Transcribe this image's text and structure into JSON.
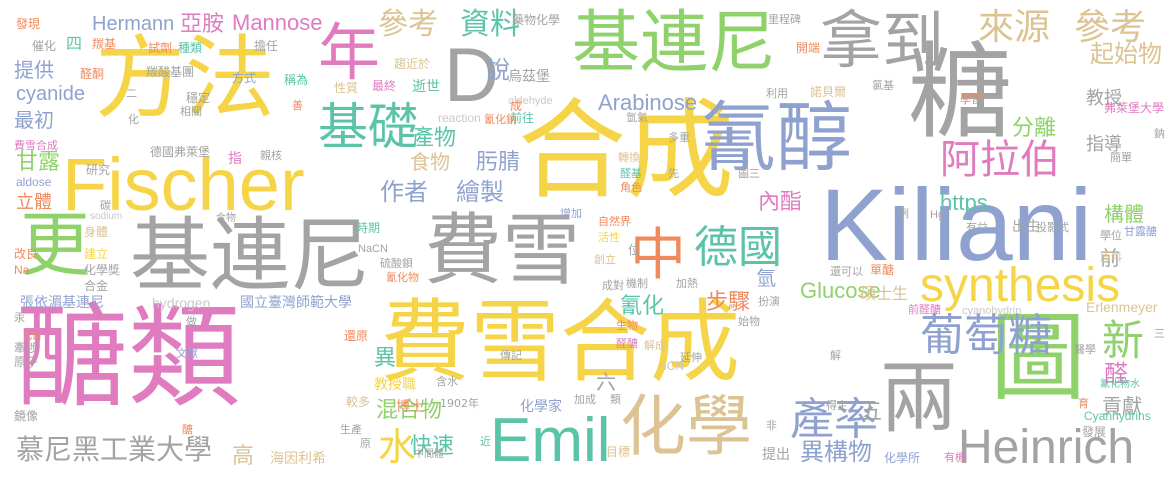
{
  "colors": {
    "yellow": "#f5d547",
    "pink": "#e07bc0",
    "gray": "#a3a3a3",
    "blue": "#8fa2cf",
    "green": "#8fd16a",
    "teal": "#5bc4a8",
    "orange": "#f08a5d",
    "tan": "#dcc393",
    "lightgray": "#c9c9c9"
  },
  "words": [
    {
      "text": "合成",
      "color": "yellow"
    },
    {
      "text": "醣類",
      "color": "pink"
    },
    {
      "text": "費雪合成",
      "color": "yellow"
    },
    {
      "text": "Kiliani",
      "color": "blue"
    },
    {
      "text": "方法",
      "color": "yellow"
    },
    {
      "text": "Fischer",
      "color": "yellow"
    },
    {
      "text": "基連尼",
      "color": "gray"
    },
    {
      "text": "費雪",
      "color": "gray"
    },
    {
      "text": "氰醇",
      "color": "blue"
    },
    {
      "text": "基連尼",
      "color": "green"
    },
    {
      "text": "拿到",
      "color": "gray"
    },
    {
      "text": "糖",
      "color": "gray"
    },
    {
      "text": "圖",
      "color": "green"
    },
    {
      "text": "D",
      "color": "gray"
    },
    {
      "text": "Emil",
      "color": "teal"
    },
    {
      "text": "化學",
      "color": "tan"
    },
    {
      "text": "兩",
      "color": "gray"
    },
    {
      "text": "Heinrich",
      "color": "gray"
    },
    {
      "text": "synthesis",
      "color": "yellow"
    },
    {
      "text": "葡萄糖",
      "color": "blue"
    },
    {
      "text": "中",
      "color": "orange"
    },
    {
      "text": "德國",
      "color": "teal"
    },
    {
      "text": "更",
      "color": "green"
    },
    {
      "text": "年",
      "color": "pink"
    },
    {
      "text": "基礎",
      "color": "teal"
    },
    {
      "text": "阿拉伯",
      "color": "pink"
    },
    {
      "text": "來源",
      "color": "tan"
    },
    {
      "text": "參考",
      "color": "tan"
    },
    {
      "text": "產率",
      "color": "blue"
    },
    {
      "text": "參考",
      "color": "tan"
    },
    {
      "text": "資料",
      "color": "teal"
    },
    {
      "text": "新",
      "color": "green"
    },
    {
      "text": "慕尼黑工業大學",
      "color": "gray"
    },
    {
      "text": "水",
      "color": "yellow"
    },
    {
      "text": "作者",
      "color": "blue"
    },
    {
      "text": "繪製",
      "color": "blue"
    },
    {
      "text": "異構物",
      "color": "blue"
    },
    {
      "text": "混合物",
      "color": "green"
    },
    {
      "text": "快速",
      "color": "teal"
    },
    {
      "text": "Arabinose",
      "color": "blue"
    },
    {
      "text": "Glucose",
      "color": "green"
    },
    {
      "text": "Mannose",
      "color": "pink"
    },
    {
      "text": "Hermann",
      "color": "blue"
    },
    {
      "text": "亞胺",
      "color": "pink"
    },
    {
      "text": "https",
      "color": "teal"
    },
    {
      "text": "步驟",
      "color": "orange"
    },
    {
      "text": "氰化",
      "color": "teal"
    },
    {
      "text": "說",
      "color": "blue"
    },
    {
      "text": "產物",
      "color": "teal"
    },
    {
      "text": "肟腈",
      "color": "blue"
    },
    {
      "text": "食物",
      "color": "tan"
    },
    {
      "text": "內酯",
      "color": "pink"
    },
    {
      "text": "cyanide",
      "color": "blue"
    },
    {
      "text": "提供",
      "color": "blue"
    },
    {
      "text": "最初",
      "color": "blue"
    },
    {
      "text": "甘露",
      "color": "green"
    },
    {
      "text": "立體",
      "color": "orange"
    },
    {
      "text": "教授",
      "color": "gray"
    },
    {
      "text": "起始物",
      "color": "tan"
    },
    {
      "text": "分離",
      "color": "green"
    },
    {
      "text": "指導",
      "color": "gray"
    },
    {
      "text": "構體",
      "color": "green"
    },
    {
      "text": "貢獻",
      "color": "gray"
    },
    {
      "text": "前",
      "color": "gray"
    },
    {
      "text": "異",
      "color": "teal"
    },
    {
      "text": "五",
      "color": "gray"
    },
    {
      "text": "六",
      "color": "gray"
    },
    {
      "text": "高",
      "color": "tan"
    },
    {
      "text": "醛",
      "color": "pink"
    },
    {
      "text": "出生",
      "color": "gray"
    },
    {
      "text": "氫",
      "color": "blue"
    },
    {
      "text": "博士",
      "color": "orange"
    },
    {
      "text": "化學家",
      "color": "blue"
    },
    {
      "text": "教授職",
      "color": "yellow"
    },
    {
      "text": "碩士生",
      "color": "tan"
    },
    {
      "text": "發現",
      "color": "orange"
    },
    {
      "text": "四",
      "color": "teal"
    },
    {
      "text": "催化",
      "color": "gray"
    },
    {
      "text": "醛酮",
      "color": "orange"
    },
    {
      "text": "羰基",
      "color": "orange"
    },
    {
      "text": "種類",
      "color": "teal"
    },
    {
      "text": "試劑",
      "color": "orange"
    },
    {
      "text": "羰酸基團",
      "color": "gray"
    },
    {
      "text": "方式",
      "color": "blue"
    },
    {
      "text": "擔任",
      "color": "gray"
    },
    {
      "text": "稱為",
      "color": "teal"
    },
    {
      "text": "趨近於",
      "color": "tan"
    },
    {
      "text": "逝世",
      "color": "teal"
    },
    {
      "text": "藥物化學",
      "color": "gray"
    },
    {
      "text": "烏茲堡",
      "color": "gray"
    },
    {
      "text": "aldehyde",
      "color": "lightgray"
    },
    {
      "text": "前往",
      "color": "teal"
    },
    {
      "text": "最終",
      "color": "pink"
    },
    {
      "text": "性質",
      "color": "tan"
    },
    {
      "text": "穩定",
      "color": "gray"
    },
    {
      "text": "相關",
      "color": "gray"
    },
    {
      "text": "研究",
      "color": "gray"
    },
    {
      "text": "德國弗萊堡",
      "color": "gray"
    },
    {
      "text": "親核",
      "color": "gray"
    },
    {
      "text": "指",
      "color": "pink"
    },
    {
      "text": "aldose",
      "color": "blue"
    },
    {
      "text": "費雪合成",
      "color": "pink"
    },
    {
      "text": "碳",
      "color": "gray"
    },
    {
      "text": "sodium",
      "color": "lightgray"
    },
    {
      "text": "合物",
      "color": "gray"
    },
    {
      "text": "身體",
      "color": "tan"
    },
    {
      "text": "改良",
      "color": "orange"
    },
    {
      "text": "建立",
      "color": "yellow"
    },
    {
      "text": "化學獎",
      "color": "gray"
    },
    {
      "text": "Na",
      "color": "orange"
    },
    {
      "text": "合金",
      "color": "gray"
    },
    {
      "text": "張依湄基連尼",
      "color": "blue"
    },
    {
      "text": "hydrogen",
      "color": "lightgray"
    },
    {
      "text": "國立臺灣師範大學",
      "color": "blue"
    },
    {
      "text": "CN",
      "color": "orange"
    },
    {
      "text": "牽涉",
      "color": "gray"
    },
    {
      "text": "原子",
      "color": "gray"
    },
    {
      "text": "文獻",
      "color": "blue"
    },
    {
      "text": "做",
      "color": "gray"
    },
    {
      "text": "還原",
      "color": "orange"
    },
    {
      "text": "較多",
      "color": "tan"
    },
    {
      "text": "開端",
      "color": "orange"
    },
    {
      "text": "鏡像",
      "color": "gray"
    },
    {
      "text": "1902年",
      "color": "gray"
    },
    {
      "text": "生產",
      "color": "gray"
    },
    {
      "text": "海因利希",
      "color": "tan"
    },
    {
      "text": "中間體",
      "color": "gray"
    },
    {
      "text": "目標",
      "color": "tan"
    },
    {
      "text": "化學所",
      "color": "blue"
    },
    {
      "text": "有機",
      "color": "pink"
    },
    {
      "text": "提出",
      "color": "gray"
    },
    {
      "text": "發展",
      "color": "gray"
    },
    {
      "text": "Cyanhydrins",
      "color": "teal"
    },
    {
      "text": "Erlenmeyer",
      "color": "tan"
    },
    {
      "text": "cyanohydrin",
      "color": "lightgray"
    },
    {
      "text": "前醛醣",
      "color": "pink"
    },
    {
      "text": "得主",
      "color": "gray"
    },
    {
      "text": "醫學",
      "color": "gray"
    },
    {
      "text": "氰化物水",
      "color": "teal"
    },
    {
      "text": "甘露醣",
      "color": "blue"
    },
    {
      "text": "學位",
      "color": "gray"
    },
    {
      "text": "原料",
      "color": "tan"
    },
    {
      "text": "投影式",
      "color": "gray"
    },
    {
      "text": "有益",
      "color": "gray"
    },
    {
      "text": "單醣",
      "color": "orange"
    },
    {
      "text": "還可以",
      "color": "gray"
    },
    {
      "text": "里程碑",
      "color": "gray"
    },
    {
      "text": "利用",
      "color": "gray"
    },
    {
      "text": "諾貝爾",
      "color": "tan"
    },
    {
      "text": "學習",
      "color": "orange"
    },
    {
      "text": "氯基",
      "color": "gray"
    },
    {
      "text": "弗萊堡大學",
      "color": "pink"
    },
    {
      "text": "鈉",
      "color": "gray"
    },
    {
      "text": "簡單",
      "color": "gray"
    },
    {
      "text": "多重",
      "color": "gray"
    },
    {
      "text": "轉換",
      "color": "tan"
    },
    {
      "text": "醛基",
      "color": "teal"
    },
    {
      "text": "角色",
      "color": "orange"
    },
    {
      "text": "增加",
      "color": "blue"
    },
    {
      "text": "自然界",
      "color": "orange"
    },
    {
      "text": "活性",
      "color": "yellow"
    },
    {
      "text": "創立",
      "color": "tan"
    },
    {
      "text": "成對",
      "color": "gray"
    },
    {
      "text": "機制",
      "color": "gray"
    },
    {
      "text": "加熱",
      "color": "gray"
    },
    {
      "text": "生物",
      "color": "orange"
    },
    {
      "text": "醛醣",
      "color": "pink"
    },
    {
      "text": "解成",
      "color": "tan"
    },
    {
      "text": "傳記",
      "color": "gray"
    },
    {
      "text": "HCN",
      "color": "lightgray"
    },
    {
      "text": "延伸",
      "color": "gray"
    },
    {
      "text": "含水",
      "color": "gray"
    },
    {
      "text": "加成",
      "color": "gray"
    },
    {
      "text": "扮演",
      "color": "gray"
    },
    {
      "text": "始物",
      "color": "gray"
    },
    {
      "text": "氰化物",
      "color": "orange"
    },
    {
      "text": "硫酸鋇",
      "color": "gray"
    },
    {
      "text": "NaCN",
      "color": "gray"
    },
    {
      "text": "時期",
      "color": "teal"
    },
    {
      "text": "reaction",
      "color": "lightgray"
    },
    {
      "text": "氰化鈉",
      "color": "orange"
    },
    {
      "text": "成",
      "color": "orange"
    },
    {
      "text": "氫氣",
      "color": "gray"
    },
    {
      "text": "先",
      "color": "gray"
    },
    {
      "text": "圖三",
      "color": "gray"
    },
    {
      "text": "例",
      "color": "gray"
    },
    {
      "text": "Hg",
      "color": "gray"
    },
    {
      "text": "二",
      "color": "gray"
    },
    {
      "text": "化",
      "color": "gray"
    },
    {
      "text": "三",
      "color": "gray"
    },
    {
      "text": "位",
      "color": "gray"
    },
    {
      "text": "善",
      "color": "orange"
    },
    {
      "text": "解",
      "color": "gray"
    },
    {
      "text": "原",
      "color": "gray"
    },
    {
      "text": "近",
      "color": "teal"
    },
    {
      "text": "類",
      "color": "gray"
    },
    {
      "text": "非",
      "color": "gray"
    },
    {
      "text": "育",
      "color": "orange"
    },
    {
      "text": "醣",
      "color": "orange"
    },
    {
      "text": "汞",
      "color": "gray"
    }
  ]
}
